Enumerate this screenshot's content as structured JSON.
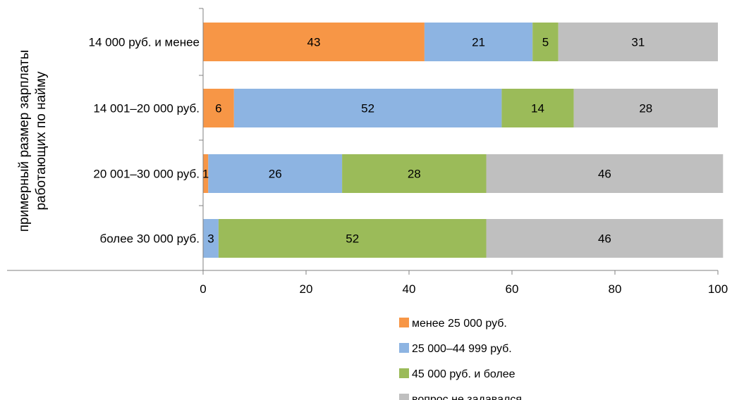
{
  "chart_data": {
    "type": "bar",
    "orientation": "horizontal",
    "stacked": true,
    "categories": [
      "14 000 руб. и менее",
      "14 001–20 000 руб.",
      "20 001–30 000 руб.",
      "более 30 000 руб."
    ],
    "series": [
      {
        "name": "менее 25 000 руб.",
        "color": "#F79646",
        "values": [
          43,
          6,
          1,
          0
        ]
      },
      {
        "name": "25 000–44 999 руб.",
        "color": "#8DB4E2",
        "values": [
          21,
          52,
          26,
          3
        ]
      },
      {
        "name": "45 000 руб. и более",
        "color": "#9BBB59",
        "values": [
          5,
          14,
          28,
          52
        ]
      },
      {
        "name": "вопрос не задавался",
        "color": "#BFBFBF",
        "values": [
          31,
          28,
          46,
          46
        ]
      }
    ],
    "ylabel": [
      "примерный размер зарплаты",
      "работающих по найму"
    ],
    "xlim": [
      0,
      100
    ],
    "xticks": [
      0,
      20,
      40,
      60,
      80,
      100
    ],
    "grid": false,
    "legend_position": "bottom-right"
  }
}
